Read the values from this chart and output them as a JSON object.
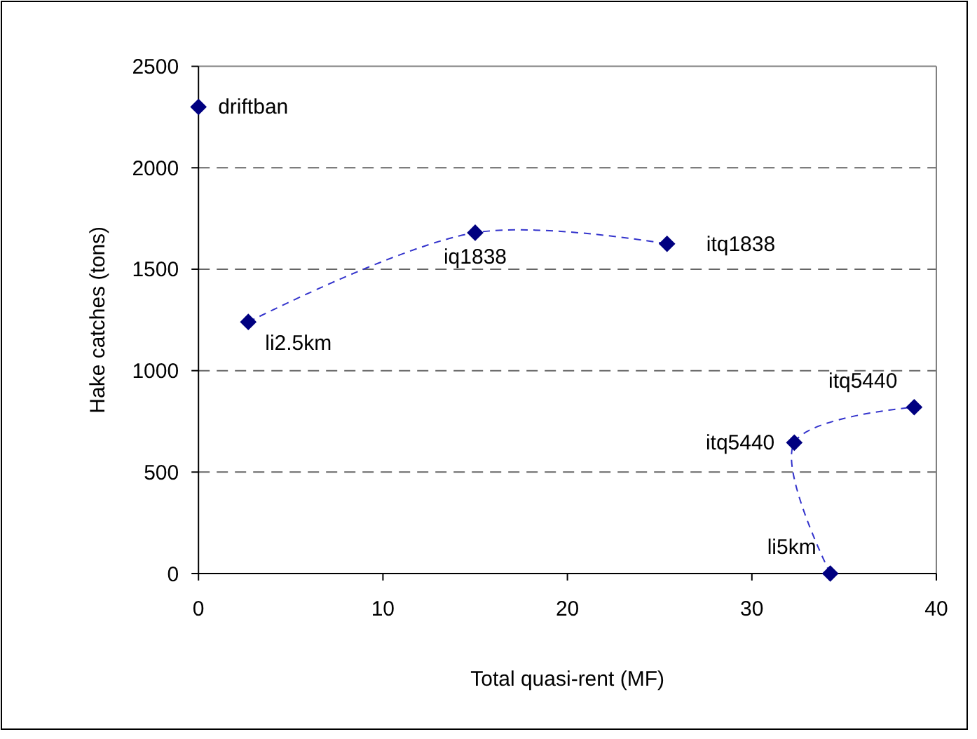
{
  "chart_data": {
    "type": "line",
    "xlabel": "Total quasi-rent (MF)",
    "ylabel": "Hake catches (tons)",
    "xlim": [
      0,
      40
    ],
    "xticks": [
      0,
      10,
      20,
      30,
      40
    ],
    "ylim": [
      0,
      2500
    ],
    "yticks": [
      0,
      500,
      1000,
      1500,
      2000,
      2500
    ],
    "grid": "y",
    "marker": "diamond",
    "line_style": "dashed",
    "series": [
      {
        "type": "scatter",
        "color": "#000080",
        "x": [
          0
        ],
        "values": [
          2300
        ]
      },
      {
        "color": "#000080",
        "x": [
          2.7,
          15,
          25.4
        ],
        "values": [
          1240,
          1680,
          1625
        ]
      },
      {
        "color": "#000080",
        "x": [
          34.25,
          32.3,
          38.8
        ],
        "values": [
          0,
          645,
          820
        ]
      }
    ],
    "annotations": [
      {
        "text": "driftban",
        "x": 0,
        "y": 2300
      },
      {
        "text": "li2.5km",
        "x": 2.7,
        "y": 1240
      },
      {
        "text": "iq1838",
        "x": 15,
        "y": 1680
      },
      {
        "text": "itq1838",
        "x": 25.4,
        "y": 1625
      },
      {
        "text": "itq5440",
        "x": 32.3,
        "y": 645
      },
      {
        "text": "itq5440",
        "x": 38.8,
        "y": 820
      },
      {
        "text": "li5km",
        "x": 34.25,
        "y": 0
      }
    ]
  }
}
